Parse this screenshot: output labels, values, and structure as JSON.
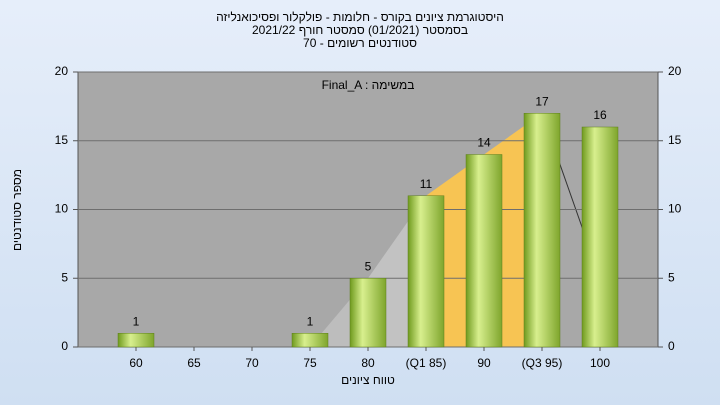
{
  "chart_data": {
    "type": "bar",
    "title": "היסטוגרמת ציונים בקורס - חלומות - פולקלור ופסיכואנליזה",
    "subtitle": "בסמסטר  (01/2021)  סמסטר חורף 2021/22",
    "subtitle2": "סטודנטים רשומים - 70",
    "annotation": "Final_A : במשימה",
    "x_label": "טווח ציונים",
    "y_label": "מספר סטודנטים",
    "categories": [
      "60",
      "65",
      "70",
      "75",
      "80",
      "(Q1 85)",
      "90",
      "(Q3 95)",
      "100"
    ],
    "values": [
      1,
      null,
      null,
      1,
      5,
      11,
      14,
      17,
      16
    ],
    "color": "#9dc44a",
    "ylim": [
      0,
      20
    ],
    "yticks": [
      0,
      5,
      10,
      15,
      20
    ],
    "y2lim": [
      0,
      20
    ],
    "y2ticks": [
      0,
      5,
      10,
      15,
      20
    ],
    "grid": true
  }
}
